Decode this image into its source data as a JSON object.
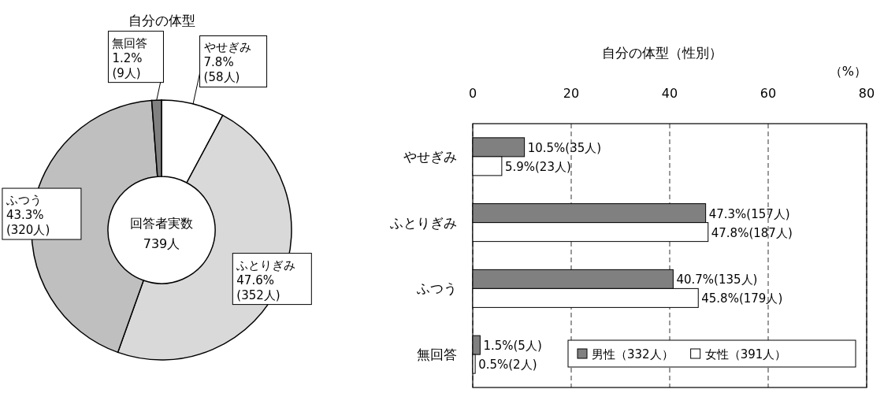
{
  "chart_data": [
    {
      "type": "donut",
      "title": "自分の体型",
      "categories": [
        "やせぎみ",
        "ふとりぎみ",
        "ふつう",
        "無回答"
      ],
      "values": [
        7.8,
        47.6,
        43.3,
        1.2
      ],
      "colors": [
        "#ffffff",
        "#d9d9d9",
        "#bfbfbf",
        "#808080"
      ],
      "value_labels": [
        "7.8%\n(58人)",
        "47.6%\n(352人)",
        "43.3%\n(320人)",
        "1.2%\n(9人)"
      ],
      "annotations": [
        "回答者実数\n739人"
      ]
    },
    {
      "type": "bar",
      "orientation": "horizontal",
      "title": "自分の体型（性別）",
      "xlabel": "（%）",
      "categories": [
        "やせぎみ",
        "ふとりぎみ",
        "ふつう",
        "無回答"
      ],
      "series": [
        {
          "name": "男性（332人）",
          "color": "#808080",
          "values": [
            10.5,
            47.3,
            40.7,
            1.5
          ],
          "value_labels": [
            "10.5%(35人)",
            "47.3%(157人)",
            "40.7%(135人)",
            "1.5%(5人)"
          ]
        },
        {
          "name": "女性（391人）",
          "color": "#ffffff",
          "values": [
            5.9,
            47.8,
            45.8,
            0.5
          ],
          "value_labels": [
            "5.9%(23人)",
            "47.8%(187人)",
            "45.8%(179人)",
            "0.5%(2人)"
          ]
        }
      ],
      "xlim": [
        0,
        80
      ],
      "xticks": [
        0,
        20,
        40,
        60,
        80
      ],
      "grid": "x",
      "line_style": "dashed",
      "legend": "bottom right"
    }
  ]
}
